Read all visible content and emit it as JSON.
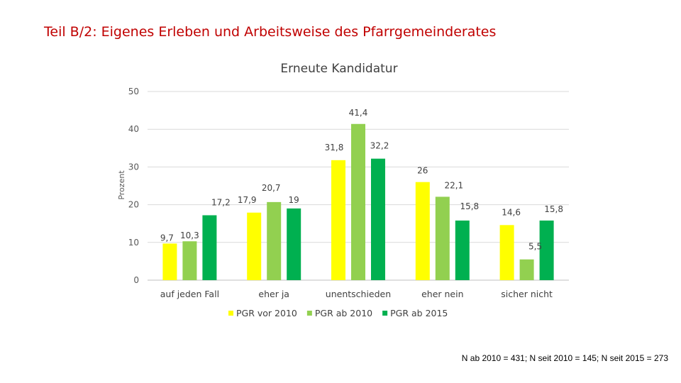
{
  "slide": {
    "title": "Teil B/2: Eigenes Erleben und Arbeitsweise des Pfarrgemeinderates",
    "footnote": "N ab 2010 = 431; N seit 2010 = 145; N seit 2015 = 273"
  },
  "chart_data": {
    "type": "bar",
    "title": "Erneute Kandidatur",
    "xlabel": "",
    "ylabel": "Prozent",
    "ylim": [
      0,
      50
    ],
    "yticks": [
      0,
      10,
      20,
      30,
      40,
      50
    ],
    "grid": true,
    "legend_position": "bottom",
    "categories": [
      "auf jeden Fall",
      "eher ja",
      "unentschieden",
      "eher nein",
      "sicher nicht"
    ],
    "series": [
      {
        "name": "PGR vor 2010",
        "color": "#ffff00",
        "values": [
          9.7,
          17.9,
          31.8,
          26,
          14.6
        ],
        "labels": [
          "9,7",
          "17,9",
          "31,8",
          "26",
          "14,6"
        ]
      },
      {
        "name": "PGR ab 2010",
        "color": "#92d050",
        "values": [
          10.3,
          20.7,
          41.4,
          22.1,
          5.5
        ],
        "labels": [
          "10,3",
          "20,7",
          "41,4",
          "22,1",
          "5,5"
        ]
      },
      {
        "name": "PGR ab 2015",
        "color": "#00b050",
        "values": [
          17.2,
          19,
          32.2,
          15.8,
          15.8
        ],
        "labels": [
          "17,2",
          "19",
          "32,2",
          "15,8",
          "15,8"
        ]
      }
    ]
  }
}
